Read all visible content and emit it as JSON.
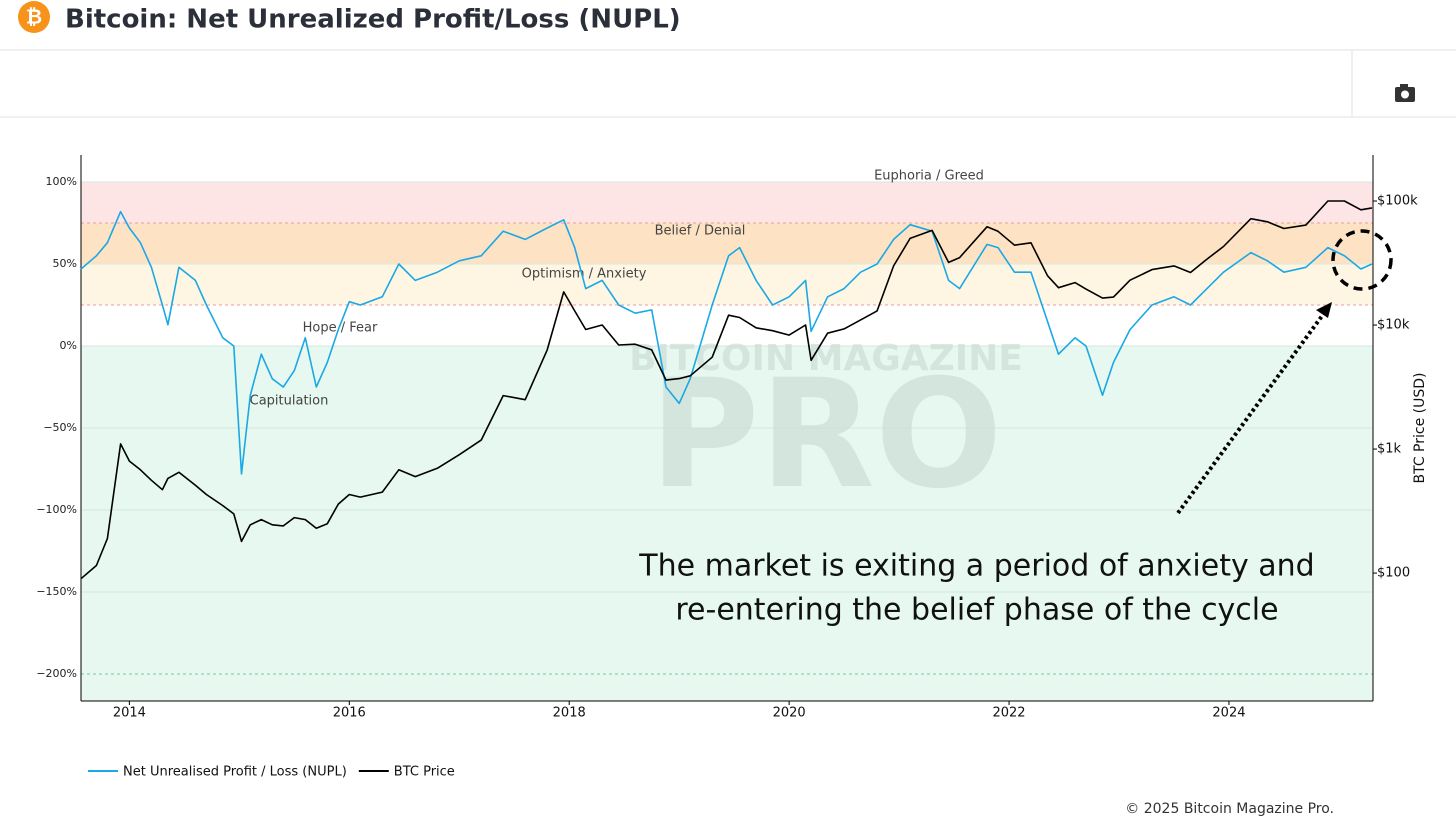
{
  "header": {
    "title": "Bitcoin: Net Unrealized Profit/Loss (NUPL)"
  },
  "chart_data": {
    "type": "line",
    "x": [
      2013.56,
      2013.7,
      2013.8,
      2013.92,
      2014.0,
      2014.1,
      2014.2,
      2014.3,
      2014.35,
      2014.45,
      2014.6,
      2014.7,
      2014.85,
      2014.95,
      2015.02,
      2015.1,
      2015.2,
      2015.3,
      2015.4,
      2015.5,
      2015.6,
      2015.7,
      2015.8,
      2015.9,
      2016.0,
      2016.1,
      2016.3,
      2016.45,
      2016.6,
      2016.8,
      2017.0,
      2017.2,
      2017.4,
      2017.6,
      2017.8,
      2017.95,
      2018.05,
      2018.15,
      2018.3,
      2018.45,
      2018.6,
      2018.75,
      2018.88,
      2019.0,
      2019.1,
      2019.3,
      2019.45,
      2019.55,
      2019.7,
      2019.85,
      2020.0,
      2020.15,
      2020.2,
      2020.35,
      2020.5,
      2020.65,
      2020.8,
      2020.95,
      2021.1,
      2021.3,
      2021.45,
      2021.55,
      2021.8,
      2021.9,
      2022.05,
      2022.2,
      2022.35,
      2022.45,
      2022.6,
      2022.7,
      2022.85,
      2022.95,
      2023.1,
      2023.3,
      2023.5,
      2023.65,
      2023.8,
      2023.95,
      2024.2,
      2024.35,
      2024.5,
      2024.7,
      2024.9,
      2025.05,
      2025.2,
      2025.3
    ],
    "xlim": [
      2013.56,
      2025.31
    ],
    "xticks": [
      2014,
      2016,
      2018,
      2020,
      2022,
      2024
    ],
    "ylim": [
      -216.5,
      116.5
    ],
    "yticks": [
      {
        "value": -200,
        "label": "−200%"
      },
      {
        "value": -150,
        "label": "−150%"
      },
      {
        "value": -100,
        "label": "−100%"
      },
      {
        "value": -50,
        "label": "−50%"
      },
      {
        "value": 0,
        "label": "0%"
      },
      {
        "value": 50,
        "label": "50%"
      },
      {
        "value": 100,
        "label": "100%"
      }
    ],
    "y2lim": [
      9.3,
      235000
    ],
    "y2ticks": [
      {
        "value": 100,
        "label": "$100"
      },
      {
        "value": 1000,
        "label": "$1k"
      },
      {
        "value": 10000,
        "label": "$10k"
      },
      {
        "value": 100000,
        "label": "$100k"
      }
    ],
    "y2_log": true,
    "y2_label": "BTC Price (USD)",
    "series": [
      {
        "name": "Net Unrealised Profit / Loss (NUPL)",
        "color": "#1ba8e6",
        "values": [
          47,
          55,
          63,
          82,
          72,
          63,
          48,
          25,
          13,
          48,
          40,
          25,
          5,
          0,
          -78,
          -30,
          -5,
          -20,
          -25,
          -15,
          5,
          -25,
          -10,
          10,
          27,
          25,
          30,
          50,
          40,
          45,
          52,
          55,
          70,
          65,
          72,
          77,
          60,
          35,
          40,
          25,
          20,
          22,
          -25,
          -35,
          -20,
          25,
          55,
          60,
          40,
          25,
          30,
          40,
          9,
          30,
          35,
          45,
          50,
          65,
          74,
          70,
          40,
          35,
          62,
          60,
          45,
          45,
          15,
          -5,
          5,
          0,
          -30,
          -10,
          10,
          25,
          30,
          25,
          35,
          45,
          57,
          52,
          45,
          48,
          60,
          55,
          47,
          50
        ]
      },
      {
        "name": "BTC Price",
        "color": "#000000",
        "axis": "y2",
        "values": [
          90,
          115,
          190,
          1100,
          800,
          680,
          560,
          470,
          580,
          650,
          510,
          430,
          350,
          300,
          180,
          245,
          270,
          245,
          240,
          280,
          270,
          230,
          250,
          360,
          430,
          410,
          450,
          680,
          600,
          700,
          900,
          1180,
          2700,
          2500,
          6300,
          18500,
          13000,
          9200,
          10000,
          6900,
          7000,
          6300,
          3600,
          3700,
          3900,
          5500,
          12000,
          11500,
          9500,
          9000,
          8300,
          10000,
          5200,
          8600,
          9300,
          11000,
          13000,
          30000,
          50000,
          58000,
          32000,
          35000,
          62000,
          57000,
          44000,
          46000,
          25000,
          20000,
          22000,
          19500,
          16500,
          16800,
          23000,
          28000,
          30000,
          26500,
          34000,
          43000,
          72000,
          68000,
          60000,
          64000,
          100000,
          100000,
          85000,
          88000
        ]
      }
    ],
    "zones": [
      {
        "label": "Euphoria / Greed",
        "range": [
          75,
          100
        ],
        "color": "#fde4e5"
      },
      {
        "label": "Belief / Denial",
        "range": [
          50,
          75
        ],
        "color": "#fde2c3"
      },
      {
        "label": "Optimism / Anxiety",
        "range": [
          25,
          50
        ],
        "color": "#fef6e2"
      },
      {
        "label": "Hope / Fear",
        "range": [
          0,
          25
        ],
        "color": "#ffffff"
      },
      {
        "label": "Capitulation",
        "range": [
          null,
          0
        ],
        "color": "#e6f8ef"
      }
    ],
    "annotation": [
      "The market is exiting a period of anxiety and",
      "re-entering the belief phase of the cycle"
    ],
    "watermark": [
      "BITCOIN MAGAZINE",
      "PRO"
    ],
    "legend": "bottom-left"
  },
  "footer": {
    "copyright": "© 2025 Bitcoin Magazine Pro."
  }
}
